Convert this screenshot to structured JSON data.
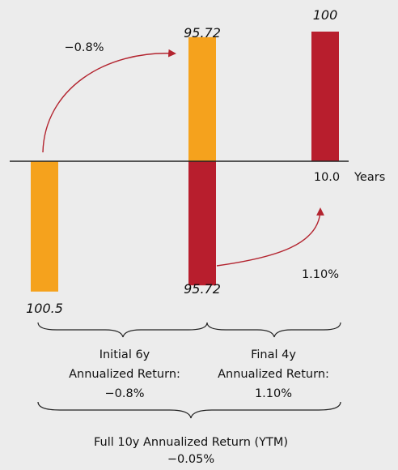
{
  "chart_data": {
    "type": "bar",
    "colors": {
      "orange": "#f5a21d",
      "red": "#b81e2d",
      "axis": "#222222",
      "arrow": "#b3242f"
    },
    "bars": [
      {
        "name": "bar-initial-price",
        "label": "100.5",
        "value": -100.5,
        "color": "orange",
        "group": "left"
      },
      {
        "name": "bar-mid-price-up",
        "label": "95.72",
        "value": 95.72,
        "color": "orange",
        "group": "mid"
      },
      {
        "name": "bar-mid-price-down",
        "label": "95.72",
        "value": -95.72,
        "color": "red",
        "group": "mid"
      },
      {
        "name": "bar-final-price",
        "label": "100",
        "value": 100,
        "color": "red",
        "group": "right"
      }
    ],
    "annotations": {
      "arrow1_label": "−0.8%",
      "arrow2_label": "1.10%",
      "axis_tick": "10.0",
      "axis_unit": "Years"
    },
    "brackets": {
      "initial": {
        "line1": "Initial 6y",
        "line2": "Annualized Return:",
        "line3": "−0.8%"
      },
      "final": {
        "line1": "Final 4y",
        "line2": "Annualized Return:",
        "line3": "1.10%"
      },
      "full": {
        "line1": "Full 10y Annualized Return (YTM)",
        "line2": "−0.05%"
      }
    }
  }
}
